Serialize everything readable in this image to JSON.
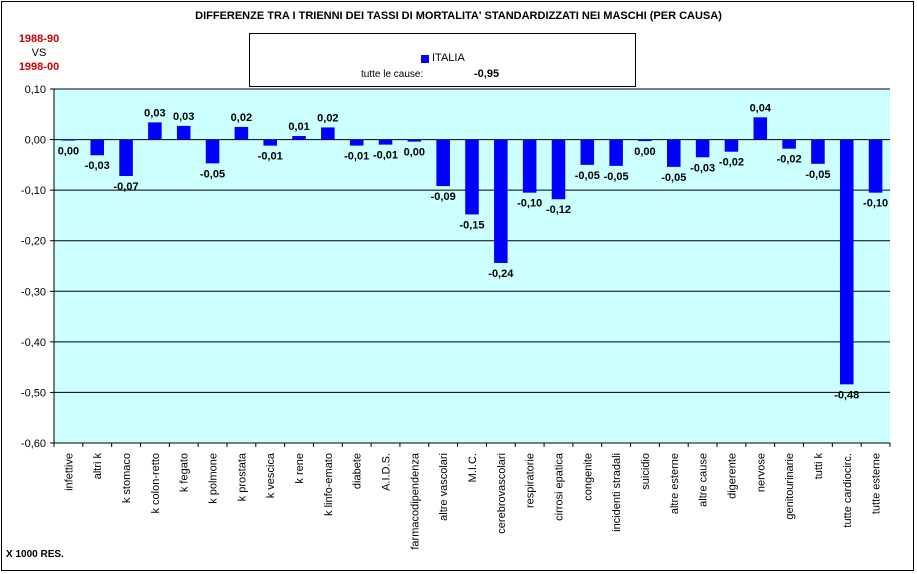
{
  "title": "DIFFERENZE TRA I TRIENNI DEI TASSI DI MORTALITA' STANDARDIZZATI NEI MASCHI (PER CAUSA)",
  "period": {
    "from": "1988-90",
    "vs": "VS",
    "to": "1998-00"
  },
  "legend": {
    "series": "ITALIA",
    "total_label": "tutte le cause:",
    "total_value": "-0,95"
  },
  "unit": "X 1000 RES.",
  "colors": {
    "bar": "#0000ff",
    "plot_bg": "#ccffff",
    "gridline": "#000000"
  },
  "chart_data": {
    "type": "bar",
    "title": "DIFFERENZE TRA I TRIENNI DEI TASSI DI MORTALITA' STANDARDIZZATI NEI MASCHI (PER CAUSA)",
    "xlabel": "",
    "ylabel": "",
    "ylim": [
      -0.6,
      0.1
    ],
    "yticks": [
      0.1,
      0,
      -0.1,
      -0.2,
      -0.3,
      -0.4,
      -0.5,
      -0.6
    ],
    "ytick_labels": [
      "0,10",
      "0,00",
      "-0,10",
      "-0,20",
      "-0,30",
      "-0,40",
      "-0,50",
      "-0,60"
    ],
    "grid": true,
    "categories": [
      "infettive",
      "altri k",
      "k stomaco",
      "k colon-retto",
      "k fegato",
      "k polmone",
      "k prostata",
      "k vescica",
      "k rene",
      "k linfo-emato",
      "diabete",
      "A.I.D.S.",
      "farmacodipendenza",
      "altre vascolari",
      "M.I.C.",
      "cerebrovascolari",
      "respiratorie",
      "cirrosi epatica",
      "congenite",
      "incidenti stradali",
      "suicidio",
      "altre esterne",
      "altre cause",
      "digerente",
      "nervose",
      "genitourinarie",
      "tutti k",
      "tutte cardiocirc.",
      "tutte esterne"
    ],
    "series": [
      {
        "name": "ITALIA",
        "values": [
          -0.002,
          -0.031,
          -0.072,
          0.034,
          0.027,
          -0.047,
          0.025,
          -0.012,
          0.007,
          0.024,
          -0.012,
          -0.01,
          -0.004,
          -0.092,
          -0.148,
          -0.244,
          -0.105,
          -0.118,
          -0.05,
          -0.052,
          -0.003,
          -0.054,
          -0.035,
          -0.024,
          0.044,
          -0.018,
          -0.048,
          -0.484,
          -0.105
        ],
        "labels": [
          "0,00",
          "-0,03",
          "-0,07",
          "0,03",
          "0,03",
          "-0,05",
          "0,02",
          "-0,01",
          "0,01",
          "0,02",
          "-0,01",
          "-0,01",
          "0,00",
          "-0,09",
          "-0,15",
          "-0,24",
          "-0,10",
          "-0,12",
          "-0,05",
          "-0,05",
          "0,00",
          "-0,05",
          "-0,03",
          "-0,02",
          "0,04",
          "-0,02",
          "-0,05",
          "-0,48",
          "-0,10"
        ]
      }
    ]
  }
}
